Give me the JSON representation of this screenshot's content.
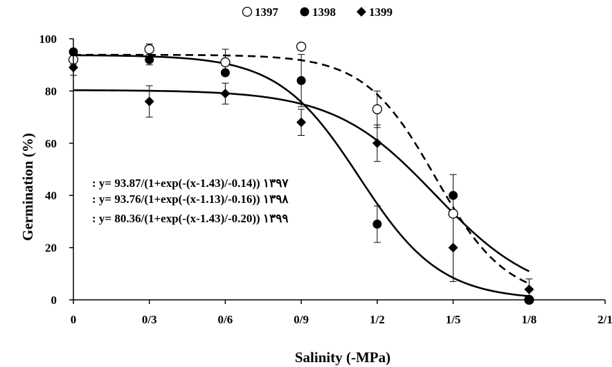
{
  "chart_data": {
    "type": "scatter",
    "xlabel": "Salinity (-MPa)",
    "ylabel": "Germination (%)",
    "xlim": [
      0,
      2.1
    ],
    "ylim": [
      0,
      100
    ],
    "x_ticks": [
      0,
      0.3,
      0.6,
      0.9,
      1.2,
      1.5,
      1.8,
      2.1
    ],
    "x_tick_labels": [
      "0",
      "0/3",
      "0/6",
      "0/9",
      "1/2",
      "1/5",
      "1/8",
      "2/1"
    ],
    "y_ticks": [
      0,
      20,
      40,
      60,
      80,
      100
    ],
    "y_tick_labels": [
      "0",
      "20",
      "40",
      "60",
      "80",
      "100"
    ],
    "grid": false,
    "legend_position": "top-center",
    "series": [
      {
        "name": "1397",
        "marker": "open-circle",
        "color": "#000000",
        "x": [
          0,
          0.3,
          0.6,
          0.9,
          1.2,
          1.5,
          1.8
        ],
        "y": [
          92,
          96,
          91,
          97,
          73,
          33,
          0
        ],
        "err": [
          2,
          2,
          5,
          0,
          7,
          0,
          0
        ],
        "fit": {
          "a": 93.87,
          "x0": 1.43,
          "b": 0.14,
          "style": "dashed"
        },
        "equation": ": y= 93.87/(1+exp(-(x-1.43)/-0.14)) ۱۳۹۷"
      },
      {
        "name": "1398",
        "marker": "filled-circle",
        "color": "#000000",
        "x": [
          0,
          0.3,
          0.6,
          0.9,
          1.2,
          1.5,
          1.8
        ],
        "y": [
          95,
          92,
          87,
          84,
          29,
          40,
          0
        ],
        "err": [
          1,
          2,
          1,
          10,
          7,
          8,
          0
        ],
        "fit": {
          "a": 93.76,
          "x0": 1.13,
          "b": 0.16,
          "style": "solid"
        },
        "equation": ": y= 93.76/(1+exp(-(x-1.13)/-0.16)) ۱۳۹۸"
      },
      {
        "name": "1399",
        "marker": "filled-diamond",
        "color": "#000000",
        "x": [
          0,
          0.3,
          0.6,
          0.9,
          1.2,
          1.5,
          1.8
        ],
        "y": [
          89,
          76,
          79,
          68,
          60,
          20,
          4
        ],
        "err": [
          3,
          6,
          4,
          5,
          7,
          13,
          4
        ],
        "fit": {
          "a": 80.36,
          "x0": 1.43,
          "b": 0.2,
          "style": "solid"
        },
        "equation": ": y= 80.36/(1+exp(-(x-1.43)/-0.20)) ۱۳۹۹"
      }
    ]
  }
}
